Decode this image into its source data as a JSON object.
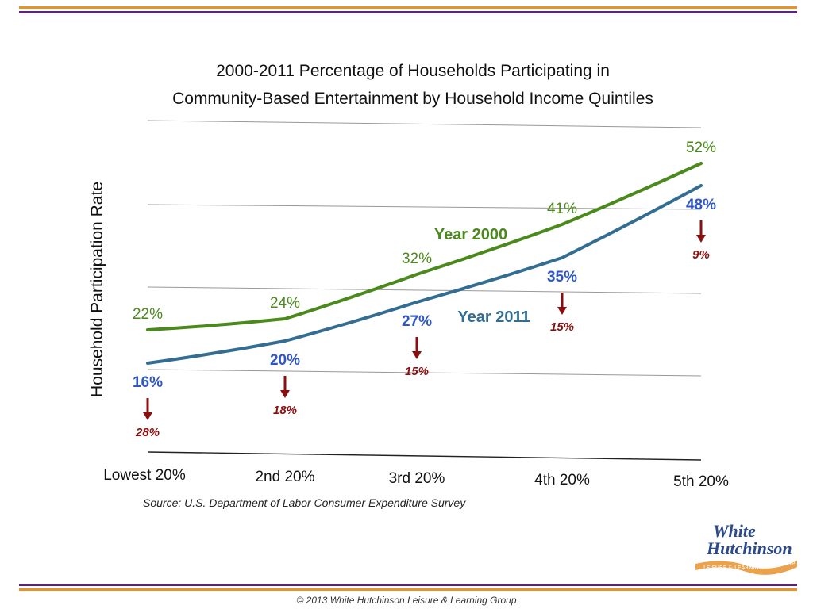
{
  "chart_data": {
    "type": "line",
    "title_line1": "2000-2011 Percentage of Households Participating in",
    "title_line2": "Community-Based Entertainment by Household Income Quintiles",
    "ylabel": "Household Participation Rate",
    "xlabel": "",
    "categories": [
      "Lowest 20%",
      "2nd 20%",
      "3rd 20%",
      "4th 20%",
      "5th 20%"
    ],
    "series": [
      {
        "name": "Year 2000",
        "values": [
          22,
          24,
          32,
          41,
          52
        ],
        "labels": [
          "22%",
          "24%",
          "32%",
          "41%",
          "52%"
        ],
        "color": "#4a8a1c"
      },
      {
        "name": "Year 2011",
        "values": [
          16,
          20,
          27,
          35,
          48
        ],
        "labels": [
          "16%",
          "20%",
          "27%",
          "35%",
          "48%"
        ],
        "color": "#336e92",
        "label_color": "#2f57c8"
      }
    ],
    "declines": [
      "28%",
      "18%",
      "15%",
      "15%",
      "9%"
    ],
    "decline_color": "#8a1010",
    "grid": true,
    "source": "Source: U.S. Department of Labor Consumer Expenditure Survey",
    "footer": "© 2013 White Hutchinson Leisure & Learning Group",
    "logo": {
      "line1": "White",
      "line2": "Hutchinson",
      "tagline": "LEISURE & LEARNING",
      "group": "GROUP"
    },
    "colors": {
      "orange": "#e8922a",
      "purple": "#5a2574",
      "logo_blue": "#2a4a8c"
    }
  }
}
